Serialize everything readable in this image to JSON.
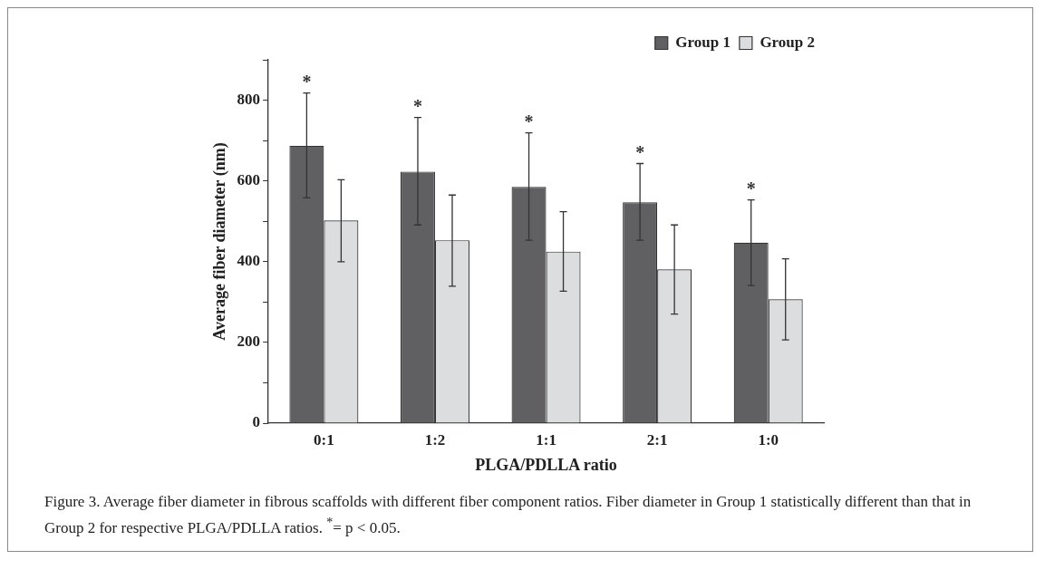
{
  "chart_data": {
    "type": "bar",
    "xlabel": "PLGA/PDLLA ratio",
    "ylabel": "Average fiber diameter (nm)",
    "categories": [
      "0:1",
      "1:2",
      "1:1",
      "2:1",
      "1:0"
    ],
    "series": [
      {
        "name": "Group 1",
        "color": "#606062",
        "values": [
          687,
          623,
          585,
          547,
          447
        ],
        "errors": [
          [
            558,
            818
          ],
          [
            491,
            757
          ],
          [
            453,
            719
          ],
          [
            453,
            643
          ],
          [
            341,
            553
          ]
        ]
      },
      {
        "name": "Group 2",
        "color": "#dcdddf",
        "values": [
          502,
          453,
          425,
          381,
          307
        ],
        "errors": [
          [
            400,
            603
          ],
          [
            339,
            565
          ],
          [
            327,
            524
          ],
          [
            270,
            491
          ],
          [
            206,
            407
          ]
        ]
      }
    ],
    "ylim": [
      0,
      900
    ],
    "yticks": [
      0,
      {
        "value": 100,
        "label": null
      },
      200,
      {
        "value": 300,
        "label": null
      },
      400,
      {
        "value": 500,
        "label": null
      },
      600,
      {
        "value": 700,
        "label": null
      },
      800,
      {
        "value": 900,
        "label": null
      }
    ],
    "grid": false,
    "legend": "top right",
    "annotations": [
      "*",
      "*",
      "*",
      "*",
      "*",
      "Figure 3. Average fiber diameter in fibrous scaffolds with different fiber component ratios. Fiber diameter in Group 1 statistically different than that in Group 2 for respective PLGA/PDLLA ratios. $^{*}$= p < 0.05."
    ]
  }
}
